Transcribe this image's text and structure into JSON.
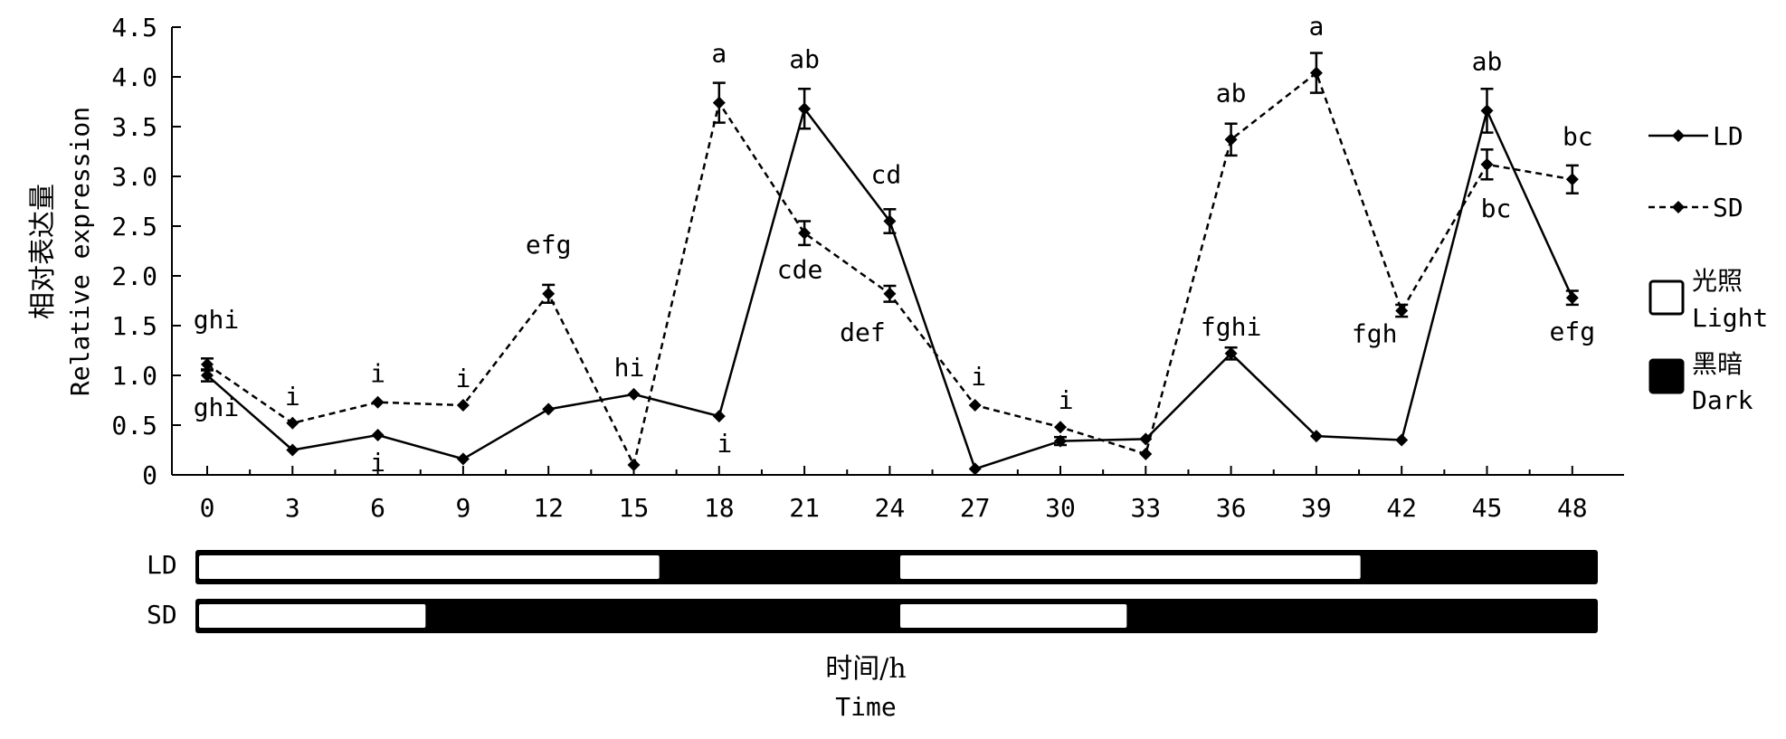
{
  "chart_data": {
    "type": "line",
    "ylabel_cn": "相对表达量",
    "ylabel_en": "Relative expression",
    "xlabel_cn": "时间/h",
    "xlabel_en": "Time",
    "ylim": [
      0,
      4.5
    ],
    "yticks": [
      "0",
      "0.5",
      "1.0",
      "1.5",
      "2.0",
      "2.5",
      "3.0",
      "3.5",
      "4.0",
      "4.5"
    ],
    "x": [
      0,
      3,
      6,
      9,
      12,
      15,
      18,
      21,
      24,
      27,
      30,
      33,
      36,
      39,
      42,
      45,
      48
    ],
    "xticks": [
      "0",
      "3",
      "6",
      "9",
      "12",
      "15",
      "18",
      "21",
      "24",
      "27",
      "30",
      "33",
      "36",
      "39",
      "42",
      "45",
      "48"
    ],
    "series": [
      {
        "name": "LD",
        "style": "solid",
        "values": [
          1.0,
          0.25,
          0.4,
          0.16,
          0.66,
          0.81,
          0.59,
          3.68,
          2.55,
          0.06,
          0.34,
          0.36,
          1.22,
          0.39,
          0.35,
          3.66,
          null
        ],
        "errors": [
          0.06,
          0.0,
          0.0,
          0.0,
          0.0,
          0.0,
          0.0,
          0.2,
          0.12,
          0.0,
          0.04,
          0.0,
          0.06,
          0.0,
          0.0,
          0.22,
          null
        ],
        "labels": [
          "ghi",
          "",
          "i",
          "",
          "",
          "hi",
          "i",
          "ab",
          "cd",
          "",
          "",
          "",
          "fghi",
          "",
          "",
          "ab",
          ""
        ]
      },
      {
        "name": "SD",
        "style": "dashed",
        "values": [
          1.11,
          0.52,
          0.73,
          0.7,
          1.82,
          0.1,
          3.74,
          2.43,
          1.82,
          0.7,
          0.48,
          0.21,
          3.37,
          4.04,
          1.65,
          3.12,
          2.97
        ],
        "errors": [
          0.06,
          0.0,
          0.0,
          0.0,
          0.09,
          0.0,
          0.2,
          0.12,
          0.08,
          0.0,
          0.0,
          0.0,
          0.16,
          0.2,
          0.06,
          0.15,
          0.14
        ],
        "labels": [
          "ghi",
          "i",
          "i",
          "i",
          "efg",
          "",
          "a",
          "cde",
          "def",
          "i",
          "i",
          "",
          "ab",
          "a",
          "fgh",
          "bc",
          "bc"
        ]
      }
    ],
    "ld_tail": {
      "x": 48,
      "value": 1.78,
      "error": 0.07,
      "label": "efg"
    },
    "legend": {
      "placement": "right",
      "lines": [
        "LD",
        "SD"
      ],
      "light_cn": "光照",
      "light_en": "Light",
      "dark_cn": "黑暗",
      "dark_en": "Dark"
    },
    "photoperiod": {
      "LD": {
        "label": "LD",
        "light_periods": [
          [
            0,
            16
          ],
          [
            24,
            40
          ]
        ]
      },
      "SD": {
        "label": "SD",
        "light_periods": [
          [
            0,
            8
          ],
          [
            24,
            32
          ]
        ]
      }
    },
    "colors": {
      "ink": "#000000",
      "light_box": "#ffffff"
    }
  }
}
